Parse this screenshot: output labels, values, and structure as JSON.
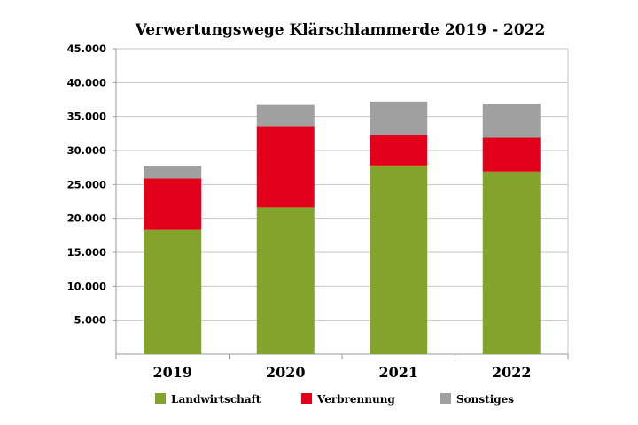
{
  "chart_data": {
    "type": "bar",
    "stacked": true,
    "title": "Verwertungswege Klärschlammerde 2019 - 2022",
    "xlabel": "",
    "ylabel": "",
    "categories": [
      "2019",
      "2020",
      "2021",
      "2022"
    ],
    "series": [
      {
        "name": "Landwirtschaft",
        "color": "#84a32c",
        "values": [
          18300,
          21600,
          27800,
          26900
        ]
      },
      {
        "name": "Verbrennung",
        "color": "#e2001a",
        "values": [
          7600,
          12000,
          4500,
          5000
        ]
      },
      {
        "name": "Sonstiges",
        "color": "#a0a0a0",
        "values": [
          1800,
          3100,
          4900,
          5000
        ]
      }
    ],
    "ylim": [
      0,
      45000
    ],
    "yticks": [
      5000,
      10000,
      15000,
      20000,
      25000,
      30000,
      35000,
      40000,
      45000
    ],
    "ytick_labels": [
      "5.000",
      "10.000",
      "15.000",
      "20.000",
      "25.000",
      "30.000",
      "35.000",
      "40.000",
      "45.000"
    ],
    "grid": true,
    "legend_position": "bottom"
  }
}
